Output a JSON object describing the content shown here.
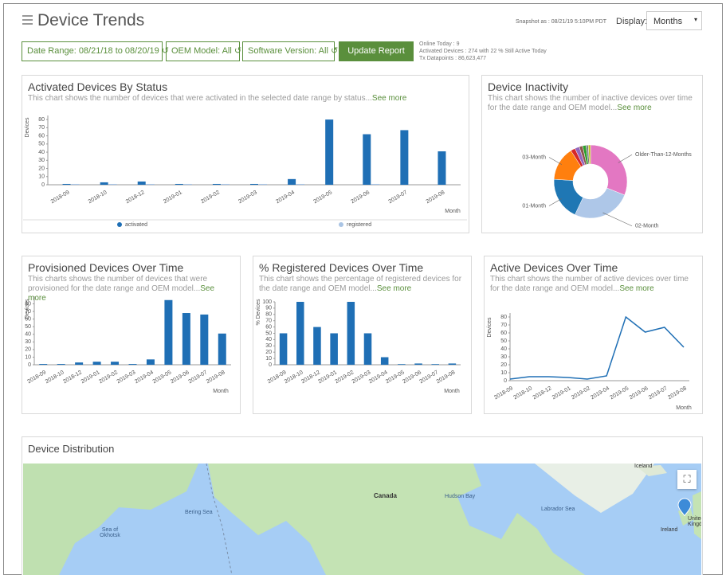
{
  "header": {
    "title": "Device Trends",
    "snapshot": "Snapshot as : 08/21/19 5:10PM PDT",
    "display_label": "Display:",
    "display_value": "Months"
  },
  "filters": [
    "Date Range: 08/21/18 to 08/20/19",
    "OEM Model: All",
    "Software Version: All"
  ],
  "update_button": "Update Report",
  "stats": [
    "Online Today : 9",
    "Activated Devices : 274 with 22 % Still Active Today",
    "Tx Datapoints : 86,623,477"
  ],
  "chart_data": [
    {
      "type": "bar",
      "title": "Activated Devices By Status",
      "subtitle": "This chart shows the number of devices that were activated in the selected date range by status...",
      "link": "See more",
      "y_label": "Devices",
      "x_label": "Month",
      "categories": [
        "2018-09",
        "2018-10",
        "2018-12",
        "2019-01",
        "2019-02",
        "2019-03",
        "2019-04",
        "2019-05",
        "2019-06",
        "2019-07",
        "2019-08"
      ],
      "series": [
        {
          "name": "activated",
          "color": "#1f6fb5",
          "values": [
            1,
            3,
            4,
            1,
            1,
            1,
            7,
            80,
            62,
            67,
            41
          ]
        },
        {
          "name": "registered",
          "color": "#a9c4e4",
          "values": [
            1,
            1,
            1,
            1,
            1,
            1,
            1,
            0,
            1,
            0,
            0
          ]
        }
      ],
      "ylim": [
        0,
        85
      ],
      "yticks": [
        0,
        10,
        20,
        30,
        40,
        50,
        60,
        70,
        80
      ],
      "legend": "bottom"
    },
    {
      "type": "pie",
      "title": "Device Inactivity",
      "subtitle": "This chart shows the number of inactive devices over time for the date range and OEM model...",
      "link": "See more",
      "donut": true,
      "categories": [
        "Older-Than-12-Months",
        "02-Month",
        "01-Month",
        "03-Month",
        null,
        null,
        null,
        null,
        null,
        null
      ],
      "values": [
        31,
        26,
        19,
        15,
        2,
        2,
        1.5,
        1.5,
        1,
        1
      ],
      "colors": [
        "#e377c2",
        "#aec7e8",
        "#1f77b4",
        "#ff7f0e",
        "#d62728",
        "#9467bd",
        "#8c564b",
        "#2ca02c",
        "#7f7f7f",
        "#bcbd22"
      ]
    },
    {
      "type": "bar",
      "title": "Provisioned Devices Over Time",
      "subtitle": "This charts shows the number of devices that were provisioned for the date range and OEM model...",
      "link": "See more",
      "y_label": "Devices",
      "x_label": "Month",
      "categories": [
        "2018-09",
        "2018-10",
        "2018-12",
        "2019-01",
        "2019-02",
        "2019-03",
        "2019-04",
        "2019-05",
        "2019-06",
        "2019-07",
        "2019-08"
      ],
      "series": [
        {
          "name": "provisioned",
          "color": "#1f6fb5",
          "values": [
            1,
            1,
            3,
            4,
            4,
            1,
            7,
            85,
            68,
            66,
            41
          ]
        }
      ],
      "ylim": [
        0,
        90
      ],
      "yticks": [
        0,
        10,
        20,
        30,
        40,
        50,
        60,
        70,
        80
      ]
    },
    {
      "type": "bar",
      "title": "% Registered Devices Over Time",
      "subtitle": "This chart shows the percentage of registered devices for the date range and OEM model...",
      "link": "See more",
      "y_label": "% Devices",
      "x_label": "Month",
      "categories": [
        "2018-09",
        "2018-10",
        "2018-12",
        "2019-01",
        "2019-02",
        "2019-03",
        "2019-04",
        "2019-05",
        "2019-06",
        "2019-07",
        "2019-08"
      ],
      "series": [
        {
          "name": "registered",
          "color": "#1f6fb5",
          "values": [
            50,
            100,
            60,
            50,
            100,
            50,
            12,
            1,
            2,
            1,
            2
          ]
        }
      ],
      "ylim": [
        0,
        100
      ],
      "yticks": [
        0,
        10,
        20,
        30,
        40,
        50,
        60,
        70,
        80,
        90,
        100
      ]
    },
    {
      "type": "line",
      "title": "Active Devices Over Time",
      "subtitle": "This chart shows the number of active devices over time for the date range and OEM model...",
      "link": "See more",
      "y_label": "Devices",
      "x_label": "Month",
      "categories": [
        "2018-09",
        "2018-10",
        "2018-12",
        "2019-01",
        "2019-02",
        "2019-04",
        "2019-05",
        "2019-06",
        "2019-07",
        "2019-08"
      ],
      "series": [
        {
          "name": "active",
          "color": "#1f6fb5",
          "values": [
            2,
            5,
            5,
            4,
            2,
            6,
            80,
            61,
            67,
            42
          ]
        }
      ],
      "ylim": [
        0,
        85
      ],
      "yticks": [
        0,
        10,
        20,
        30,
        40,
        50,
        60,
        70,
        80
      ]
    }
  ],
  "map": {
    "title": "Device Distribution",
    "labels": [
      "Iceland",
      "Canada",
      "Hudson Bay",
      "Labrador Sea",
      "Bering Sea",
      "Sea of Okhotsk",
      "Ireland",
      "United Kingdom"
    ]
  }
}
